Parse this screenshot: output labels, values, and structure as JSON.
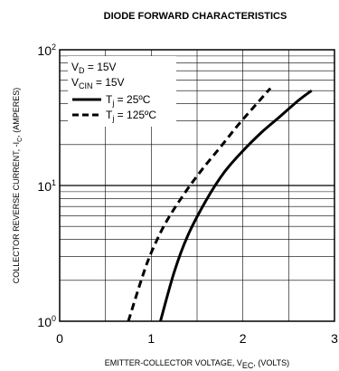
{
  "chart_data": {
    "type": "line",
    "title": "DIODE FORWARD CHARACTERISTICS",
    "xlabel": {
      "main": "EMITTER-COLLECTOR VOLTAGE, V",
      "sub": "EC",
      "tail": ", (VOLTS)"
    },
    "ylabel": {
      "main": "COLLECTOR REVERSE CURRENT, -I",
      "sub": "C",
      "tail": ", (AMPERES)"
    },
    "xlim": [
      0,
      3
    ],
    "ylim": [
      1,
      100
    ],
    "yscale": "log",
    "grid": true,
    "xticks": [
      "0",
      "1",
      "2",
      "3"
    ],
    "yticks": [
      {
        "value": 1,
        "base": "10",
        "exp": "0"
      },
      {
        "value": 10,
        "base": "10",
        "exp": "1"
      },
      {
        "value": 100,
        "base": "10",
        "exp": "2"
      }
    ],
    "conditions": [
      {
        "main": "V",
        "sub": "D",
        "tail": " = 15V"
      },
      {
        "main": "V",
        "sub": "CIN",
        "tail": " = 15V"
      }
    ],
    "series": [
      {
        "name": "T",
        "name_sub": "j",
        "name_tail": " = 25ºC",
        "style": "solid",
        "x": [
          1.1,
          1.25,
          1.4,
          1.6,
          1.8,
          2.0,
          2.2,
          2.4,
          2.6,
          2.75
        ],
        "y": [
          1,
          2.3,
          4.3,
          7.8,
          12.6,
          18,
          24.5,
          32,
          42,
          50
        ]
      },
      {
        "name": "T",
        "name_sub": "j",
        "name_tail": " = 125ºC",
        "style": "dashed",
        "x": [
          0.75,
          0.9,
          1.0,
          1.15,
          1.35,
          1.55,
          1.75,
          1.95,
          2.15,
          2.3
        ],
        "y": [
          1,
          2.1,
          3.2,
          5.2,
          8.5,
          13,
          19,
          28,
          40,
          52
        ]
      }
    ]
  }
}
